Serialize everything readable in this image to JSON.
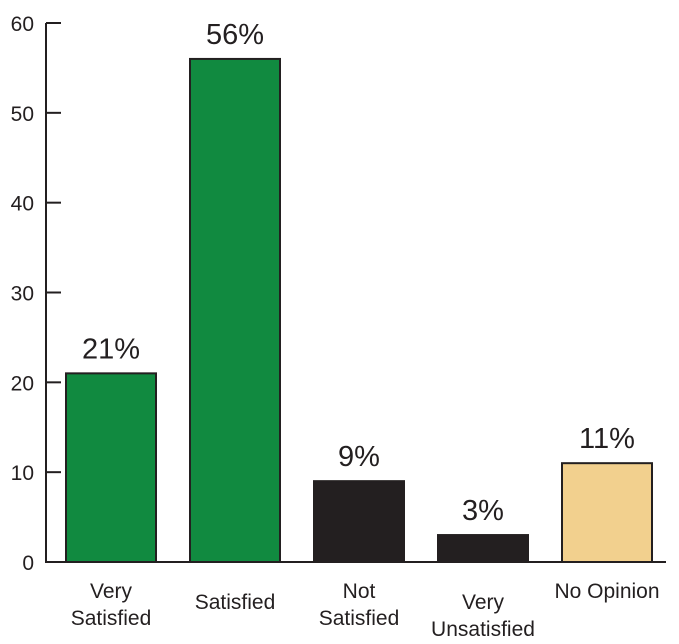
{
  "chart_data": {
    "type": "bar",
    "title": "",
    "xlabel": "",
    "ylabel": "",
    "ylim": [
      0,
      60
    ],
    "yticks": [
      0,
      10,
      20,
      30,
      40,
      50,
      60
    ],
    "grid": false,
    "legend": "none",
    "categories": [
      [
        "Very",
        "Satisfied"
      ],
      [
        "Satisfied"
      ],
      [
        "Not",
        "Satisfied"
      ],
      [
        "Very",
        "Unsatisfied"
      ],
      [
        "No Opinion"
      ]
    ],
    "values": [
      21,
      56,
      9,
      3,
      11
    ],
    "value_labels": [
      "21%",
      "56%",
      "9%",
      "3%",
      "11%"
    ],
    "colors": [
      "#118a40",
      "#118a40",
      "#231f20",
      "#231f20",
      "#f2d08e"
    ],
    "axis_color": "#231f20"
  }
}
